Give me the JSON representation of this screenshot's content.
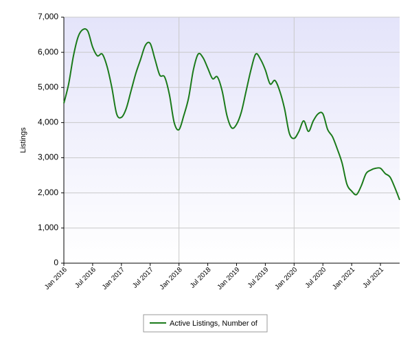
{
  "chart_data": {
    "type": "line",
    "ylabel": "Listings",
    "categories": [
      "Jan 2016",
      null,
      null,
      null,
      null,
      null,
      "Jul 2016",
      null,
      null,
      null,
      null,
      null,
      "Jan 2017",
      null,
      null,
      null,
      null,
      null,
      "Jul 2017",
      null,
      null,
      null,
      null,
      null,
      "Jan 2018",
      null,
      null,
      null,
      null,
      null,
      "Jul 2018",
      null,
      null,
      null,
      null,
      null,
      "Jan 2019",
      null,
      null,
      null,
      null,
      null,
      "Jul 2019",
      null,
      null,
      null,
      null,
      null,
      "Jan 2020",
      null,
      null,
      null,
      null,
      null,
      "Jul 2020",
      null,
      null,
      null,
      null,
      null,
      "Jan 2021",
      null,
      null,
      null,
      null,
      null,
      "Jul 2021",
      null,
      null,
      null,
      null
    ],
    "series": [
      {
        "name": "Active Listings, Number of",
        "color": "#1a7a1a",
        "values": [
          4550,
          5100,
          5900,
          6450,
          6650,
          6600,
          6150,
          5900,
          5950,
          5600,
          5000,
          4250,
          4150,
          4400,
          4900,
          5400,
          5800,
          6200,
          6250,
          5800,
          5350,
          5300,
          4800,
          4000,
          3800,
          4200,
          4700,
          5500,
          5950,
          5850,
          5550,
          5250,
          5300,
          4900,
          4200,
          3850,
          3950,
          4300,
          4900,
          5500,
          5950,
          5800,
          5500,
          5100,
          5200,
          4900,
          4400,
          3700,
          3550,
          3750,
          4050,
          3750,
          4050,
          4250,
          4250,
          3800,
          3600,
          3250,
          2850,
          2250,
          2050,
          1950,
          2200,
          2550,
          2650,
          2700,
          2700,
          2550,
          2450,
          2150,
          1800
        ]
      }
    ],
    "ylim": [
      0,
      7000
    ],
    "yticks": [
      0,
      {
        "value": 1000,
        "label": "1,000"
      },
      {
        "value": 2000,
        "label": "2,000"
      },
      {
        "value": 3000,
        "label": "3,000"
      },
      {
        "value": 4000,
        "label": "4,000"
      },
      {
        "value": 5000,
        "label": "5,000"
      },
      {
        "value": 6000,
        "label": "6,000"
      },
      {
        "value": 7000,
        "label": "7,000"
      }
    ],
    "grid": true,
    "legend": "bottom"
  }
}
